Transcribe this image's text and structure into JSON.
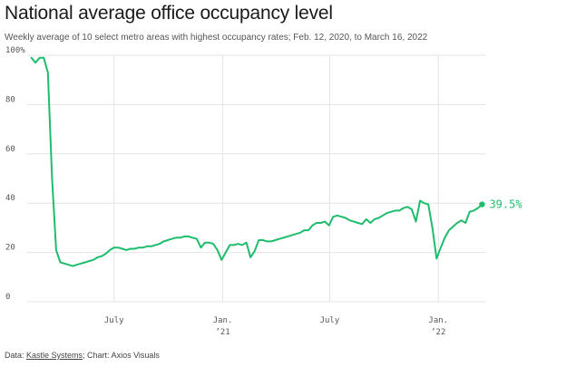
{
  "header": {
    "title": "National average office occupancy level",
    "subtitle": "Weekly average of 10 select metro areas with highest occupancy rates; Feb. 12, 2020, to March 16, 2022"
  },
  "footer": {
    "source_prefix": "Data: ",
    "source_name": "Kastle Systems",
    "source_suffix": "; Chart: Axios Visuals"
  },
  "colors": {
    "line": "#1ebc6c",
    "grid": "#e4e4e4"
  },
  "chart_data": {
    "type": "line",
    "title": "National average office occupancy level",
    "subtitle": "Weekly average of 10 select metro areas with highest occupancy rates; Feb. 12, 2020, to March 16, 2022",
    "ylim": [
      0,
      100
    ],
    "yticks": [
      {
        "value": 100,
        "label": "100%"
      },
      {
        "value": 80,
        "label": "80"
      },
      {
        "value": 60,
        "label": "60"
      },
      {
        "value": 40,
        "label": "40"
      },
      {
        "value": 20,
        "label": "20"
      },
      {
        "value": 0,
        "label": "0"
      }
    ],
    "xlim": [
      "2020-02-05",
      "2022-03-23"
    ],
    "xticks": [
      {
        "date": "2020-07-01",
        "label": "July",
        "sublabel": ""
      },
      {
        "date": "2021-01-01",
        "label": "Jan.",
        "sublabel": "’21"
      },
      {
        "date": "2021-07-01",
        "label": "July",
        "sublabel": ""
      },
      {
        "date": "2022-01-01",
        "label": "Jan.",
        "sublabel": "’22"
      }
    ],
    "grid": true,
    "end_label": "39.5%",
    "series": [
      {
        "points": [
          [
            "2020-02-12",
            99
          ],
          [
            "2020-02-19",
            97
          ],
          [
            "2020-02-26",
            99
          ],
          [
            "2020-03-04",
            99
          ],
          [
            "2020-03-11",
            93
          ],
          [
            "2020-03-18",
            50
          ],
          [
            "2020-03-25",
            21
          ],
          [
            "2020-04-01",
            16
          ],
          [
            "2020-04-08",
            15.5
          ],
          [
            "2020-04-15",
            15
          ],
          [
            "2020-04-22",
            14.5
          ],
          [
            "2020-04-29",
            15
          ],
          [
            "2020-05-06",
            15.5
          ],
          [
            "2020-05-13",
            16
          ],
          [
            "2020-05-20",
            16.5
          ],
          [
            "2020-05-27",
            17
          ],
          [
            "2020-06-03",
            18
          ],
          [
            "2020-06-10",
            18.5
          ],
          [
            "2020-06-17",
            19.5
          ],
          [
            "2020-06-24",
            21
          ],
          [
            "2020-07-01",
            22
          ],
          [
            "2020-07-08",
            22
          ],
          [
            "2020-07-15",
            21.5
          ],
          [
            "2020-07-22",
            21
          ],
          [
            "2020-07-29",
            21.5
          ],
          [
            "2020-08-05",
            21.5
          ],
          [
            "2020-08-12",
            22
          ],
          [
            "2020-08-19",
            22
          ],
          [
            "2020-08-26",
            22.5
          ],
          [
            "2020-09-02",
            22.5
          ],
          [
            "2020-09-09",
            23
          ],
          [
            "2020-09-16",
            23.5
          ],
          [
            "2020-09-23",
            24.5
          ],
          [
            "2020-09-30",
            25
          ],
          [
            "2020-10-07",
            25.5
          ],
          [
            "2020-10-14",
            26
          ],
          [
            "2020-10-21",
            26
          ],
          [
            "2020-10-28",
            26.5
          ],
          [
            "2020-11-04",
            26.5
          ],
          [
            "2020-11-11",
            26
          ],
          [
            "2020-11-18",
            25.5
          ],
          [
            "2020-11-25",
            22
          ],
          [
            "2020-12-02",
            24
          ],
          [
            "2020-12-09",
            24
          ],
          [
            "2020-12-16",
            23.5
          ],
          [
            "2020-12-23",
            21
          ],
          [
            "2020-12-30",
            17
          ],
          [
            "2021-01-06",
            20
          ],
          [
            "2021-01-13",
            23
          ],
          [
            "2021-01-20",
            23
          ],
          [
            "2021-01-27",
            23.5
          ],
          [
            "2021-02-03",
            23
          ],
          [
            "2021-02-10",
            24
          ],
          [
            "2021-02-17",
            18
          ],
          [
            "2021-02-24",
            20.5
          ],
          [
            "2021-03-03",
            25
          ],
          [
            "2021-03-10",
            25
          ],
          [
            "2021-03-17",
            24.5
          ],
          [
            "2021-03-24",
            24.5
          ],
          [
            "2021-03-31",
            25
          ],
          [
            "2021-04-07",
            25.5
          ],
          [
            "2021-04-14",
            26
          ],
          [
            "2021-04-21",
            26.5
          ],
          [
            "2021-04-28",
            27
          ],
          [
            "2021-05-05",
            27.5
          ],
          [
            "2021-05-12",
            28
          ],
          [
            "2021-05-19",
            29
          ],
          [
            "2021-05-26",
            29
          ],
          [
            "2021-06-02",
            31
          ],
          [
            "2021-06-09",
            32
          ],
          [
            "2021-06-16",
            32
          ],
          [
            "2021-06-23",
            32.5
          ],
          [
            "2021-06-30",
            31
          ],
          [
            "2021-07-07",
            34.5
          ],
          [
            "2021-07-14",
            35
          ],
          [
            "2021-07-21",
            34.5
          ],
          [
            "2021-07-28",
            34
          ],
          [
            "2021-08-04",
            33
          ],
          [
            "2021-08-11",
            32.5
          ],
          [
            "2021-08-18",
            32
          ],
          [
            "2021-08-25",
            31.5
          ],
          [
            "2021-09-01",
            33.5
          ],
          [
            "2021-09-08",
            32
          ],
          [
            "2021-09-15",
            33.5
          ],
          [
            "2021-09-22",
            34
          ],
          [
            "2021-09-29",
            35
          ],
          [
            "2021-10-06",
            36
          ],
          [
            "2021-10-13",
            36.5
          ],
          [
            "2021-10-20",
            37
          ],
          [
            "2021-10-27",
            37
          ],
          [
            "2021-11-03",
            38
          ],
          [
            "2021-11-10",
            38.5
          ],
          [
            "2021-11-17",
            37.5
          ],
          [
            "2021-11-24",
            32.5
          ],
          [
            "2021-12-01",
            41
          ],
          [
            "2021-12-08",
            40
          ],
          [
            "2021-12-15",
            39.5
          ],
          [
            "2021-12-22",
            30
          ],
          [
            "2021-12-29",
            17.5
          ],
          [
            "2022-01-05",
            22
          ],
          [
            "2022-01-12",
            26
          ],
          [
            "2022-01-19",
            29
          ],
          [
            "2022-01-26",
            30.5
          ],
          [
            "2022-02-02",
            32
          ],
          [
            "2022-02-09",
            33
          ],
          [
            "2022-02-16",
            32
          ],
          [
            "2022-02-23",
            36.5
          ],
          [
            "2022-03-02",
            37
          ],
          [
            "2022-03-09",
            38
          ],
          [
            "2022-03-16",
            39.5
          ]
        ]
      }
    ]
  }
}
